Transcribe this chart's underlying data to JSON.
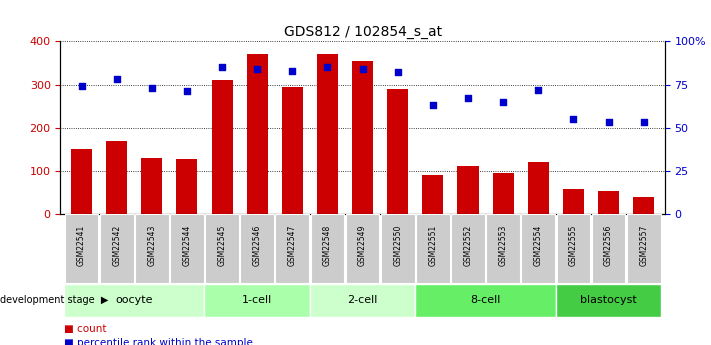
{
  "title": "GDS812 / 102854_s_at",
  "samples": [
    "GSM22541",
    "GSM22542",
    "GSM22543",
    "GSM22544",
    "GSM22545",
    "GSM22546",
    "GSM22547",
    "GSM22548",
    "GSM22549",
    "GSM22550",
    "GSM22551",
    "GSM22552",
    "GSM22553",
    "GSM22554",
    "GSM22555",
    "GSM22556",
    "GSM22557"
  ],
  "counts": [
    150,
    170,
    130,
    128,
    310,
    370,
    295,
    370,
    355,
    290,
    90,
    110,
    95,
    120,
    57,
    52,
    40
  ],
  "percentiles": [
    74,
    78,
    73,
    71,
    85,
    84,
    83,
    85,
    84,
    82,
    63,
    67,
    65,
    72,
    55,
    53,
    53
  ],
  "bar_color": "#cc0000",
  "dot_color": "#0000cc",
  "ylim_left": [
    0,
    400
  ],
  "ylim_right": [
    0,
    100
  ],
  "yticks_left": [
    0,
    100,
    200,
    300,
    400
  ],
  "yticks_right": [
    0,
    25,
    50,
    75,
    100
  ],
  "yticklabels_right": [
    "0",
    "25",
    "50",
    "75",
    "100%"
  ],
  "groups": [
    {
      "label": "oocyte",
      "start": 0,
      "end": 3,
      "color": "#ccffcc"
    },
    {
      "label": "1-cell",
      "start": 4,
      "end": 6,
      "color": "#aaffaa"
    },
    {
      "label": "2-cell",
      "start": 7,
      "end": 9,
      "color": "#ccffcc"
    },
    {
      "label": "8-cell",
      "start": 10,
      "end": 13,
      "color": "#66ee66"
    },
    {
      "label": "blastocyst",
      "start": 14,
      "end": 16,
      "color": "#44cc44"
    }
  ],
  "tick_bg_color": "#cccccc",
  "background_color": "#ffffff",
  "grid_color": "black",
  "grid_style": "dotted",
  "legend_count_color": "#cc0000",
  "legend_pct_color": "#0000cc",
  "dev_stage_label": "development stage"
}
